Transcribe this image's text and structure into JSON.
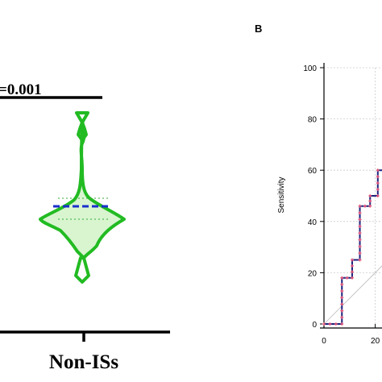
{
  "figure": {
    "panel_a": {
      "p_value_label": "=0.001",
      "group_label": "Non-ISs"
    },
    "panel_b": {
      "panel_label": "B",
      "ylabel": "Sensitivity"
    }
  },
  "chart_data": [
    {
      "type": "violin",
      "title": "",
      "categories": [
        "Non-ISs"
      ],
      "annotation": "=0.001",
      "colors": {
        "outline": "#22bb22",
        "fill": "#d8f5d0",
        "median": "#1a2fcc"
      }
    },
    {
      "type": "line",
      "title": "",
      "xlabel": "",
      "ylabel": "Sensitivity",
      "xlim": [
        0,
        100
      ],
      "ylim": [
        0,
        100
      ],
      "yticks": [
        0,
        20,
        40,
        60,
        80,
        100
      ],
      "xticks_visible": [
        "0",
        "20"
      ],
      "grid": true,
      "series": [
        {
          "x": [
            0,
            7,
            7,
            11,
            11,
            14,
            14,
            18,
            18,
            21,
            21,
            24
          ],
          "y": [
            0,
            0,
            18,
            18,
            25,
            25,
            46,
            46,
            50,
            50,
            60,
            60
          ]
        }
      ],
      "colors": {
        "line": "#1a237e",
        "markers": "#ee5577",
        "diagonal": "#bbbbbb",
        "grid": "#cccccc"
      }
    }
  ]
}
